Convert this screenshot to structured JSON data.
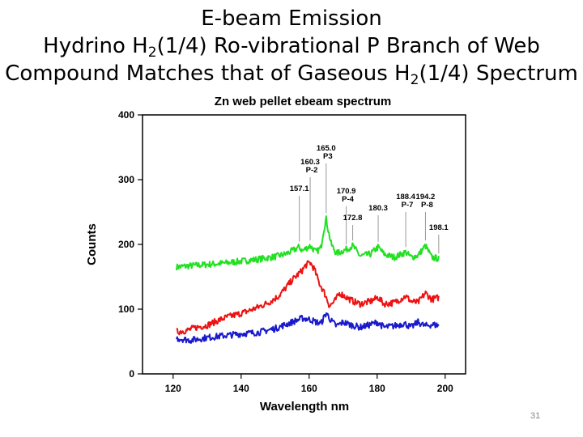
{
  "slide": {
    "title_line1": "E-beam Emission",
    "title_line2_a": "Hydrino H",
    "title_line2_sub": "2",
    "title_line2_b": "(1/4) Ro-vibrational P Branch of Web",
    "title_line3_a": "Compound Matches that of Gaseous H",
    "title_line3_sub": "2",
    "title_line3_b": "(1/4) Spectrum",
    "page_number": "31"
  },
  "chart_data": {
    "type": "line",
    "title": "Zn web pellet ebeam spectrum",
    "xlabel": "Wavelength nm",
    "ylabel": "Counts",
    "xlim": [
      111,
      206
    ],
    "ylim": [
      0,
      400
    ],
    "xticks": [
      120,
      140,
      160,
      180,
      200
    ],
    "yticks": [
      0,
      100,
      200,
      300,
      400
    ],
    "grid": false,
    "series": [
      {
        "color": "#22e022",
        "x": [
          121,
          125,
          130,
          135,
          140,
          145,
          150,
          153,
          155,
          157.1,
          158,
          160.3,
          162,
          163.5,
          164,
          165,
          165.5,
          166.5,
          168,
          170.9,
          172.8,
          175,
          178,
          180.3,
          182,
          185,
          188.4,
          190,
          192,
          194.2,
          196,
          198.1
        ],
        "y": [
          165,
          167,
          169,
          171,
          174,
          177,
          181,
          185,
          190,
          196,
          190,
          198,
          188,
          195,
          215,
          240,
          225,
          200,
          186,
          192,
          198,
          182,
          185,
          196,
          185,
          180,
          188,
          180,
          183,
          198,
          180,
          178
        ]
      },
      {
        "color": "#ee1111",
        "x": [
          121,
          124,
          127,
          130,
          133,
          136,
          139,
          142,
          145,
          148,
          151,
          153,
          155,
          157,
          158,
          159,
          160.3,
          161.5,
          163,
          164.5,
          166,
          167.5,
          169,
          171,
          173,
          175,
          178,
          180.3,
          182,
          185,
          188.4,
          190,
          192,
          194.2,
          196,
          198.1
        ],
        "y": [
          65,
          67,
          72,
          75,
          82,
          88,
          92,
          97,
          103,
          110,
          120,
          132,
          145,
          155,
          160,
          168,
          172,
          162,
          140,
          125,
          105,
          112,
          125,
          118,
          112,
          108,
          112,
          118,
          108,
          110,
          120,
          112,
          110,
          125,
          115,
          118
        ]
      },
      {
        "color": "#1a1acc",
        "x": [
          121,
          125,
          130,
          135,
          140,
          145,
          150,
          153,
          155,
          158,
          160.3,
          162,
          163.5,
          165,
          166.5,
          168,
          170,
          172,
          175,
          178,
          180,
          182,
          185,
          188,
          190,
          192,
          194,
          196,
          198.1
        ],
        "y": [
          55,
          52,
          56,
          59,
          62,
          64,
          70,
          76,
          80,
          86,
          84,
          80,
          78,
          94,
          82,
          74,
          80,
          76,
          72,
          76,
          80,
          72,
          74,
          78,
          72,
          80,
          74,
          76,
          75
        ]
      }
    ],
    "annotations": [
      {
        "x": 157.1,
        "label": "157.1",
        "sub": ""
      },
      {
        "x": 160.3,
        "label": "160.3",
        "sub": "P-2"
      },
      {
        "x": 165.0,
        "label": "165.0",
        "sub": "P3"
      },
      {
        "x": 170.9,
        "label": "170.9",
        "sub": "P-4"
      },
      {
        "x": 172.8,
        "label": "172.8",
        "sub": ""
      },
      {
        "x": 180.3,
        "label": "180.3",
        "sub": ""
      },
      {
        "x": 188.4,
        "label": "188.4",
        "sub": "P-7"
      },
      {
        "x": 194.2,
        "label": "194.2",
        "sub": "P-8"
      },
      {
        "x": 198.1,
        "label": "198.1",
        "sub": ""
      }
    ]
  }
}
